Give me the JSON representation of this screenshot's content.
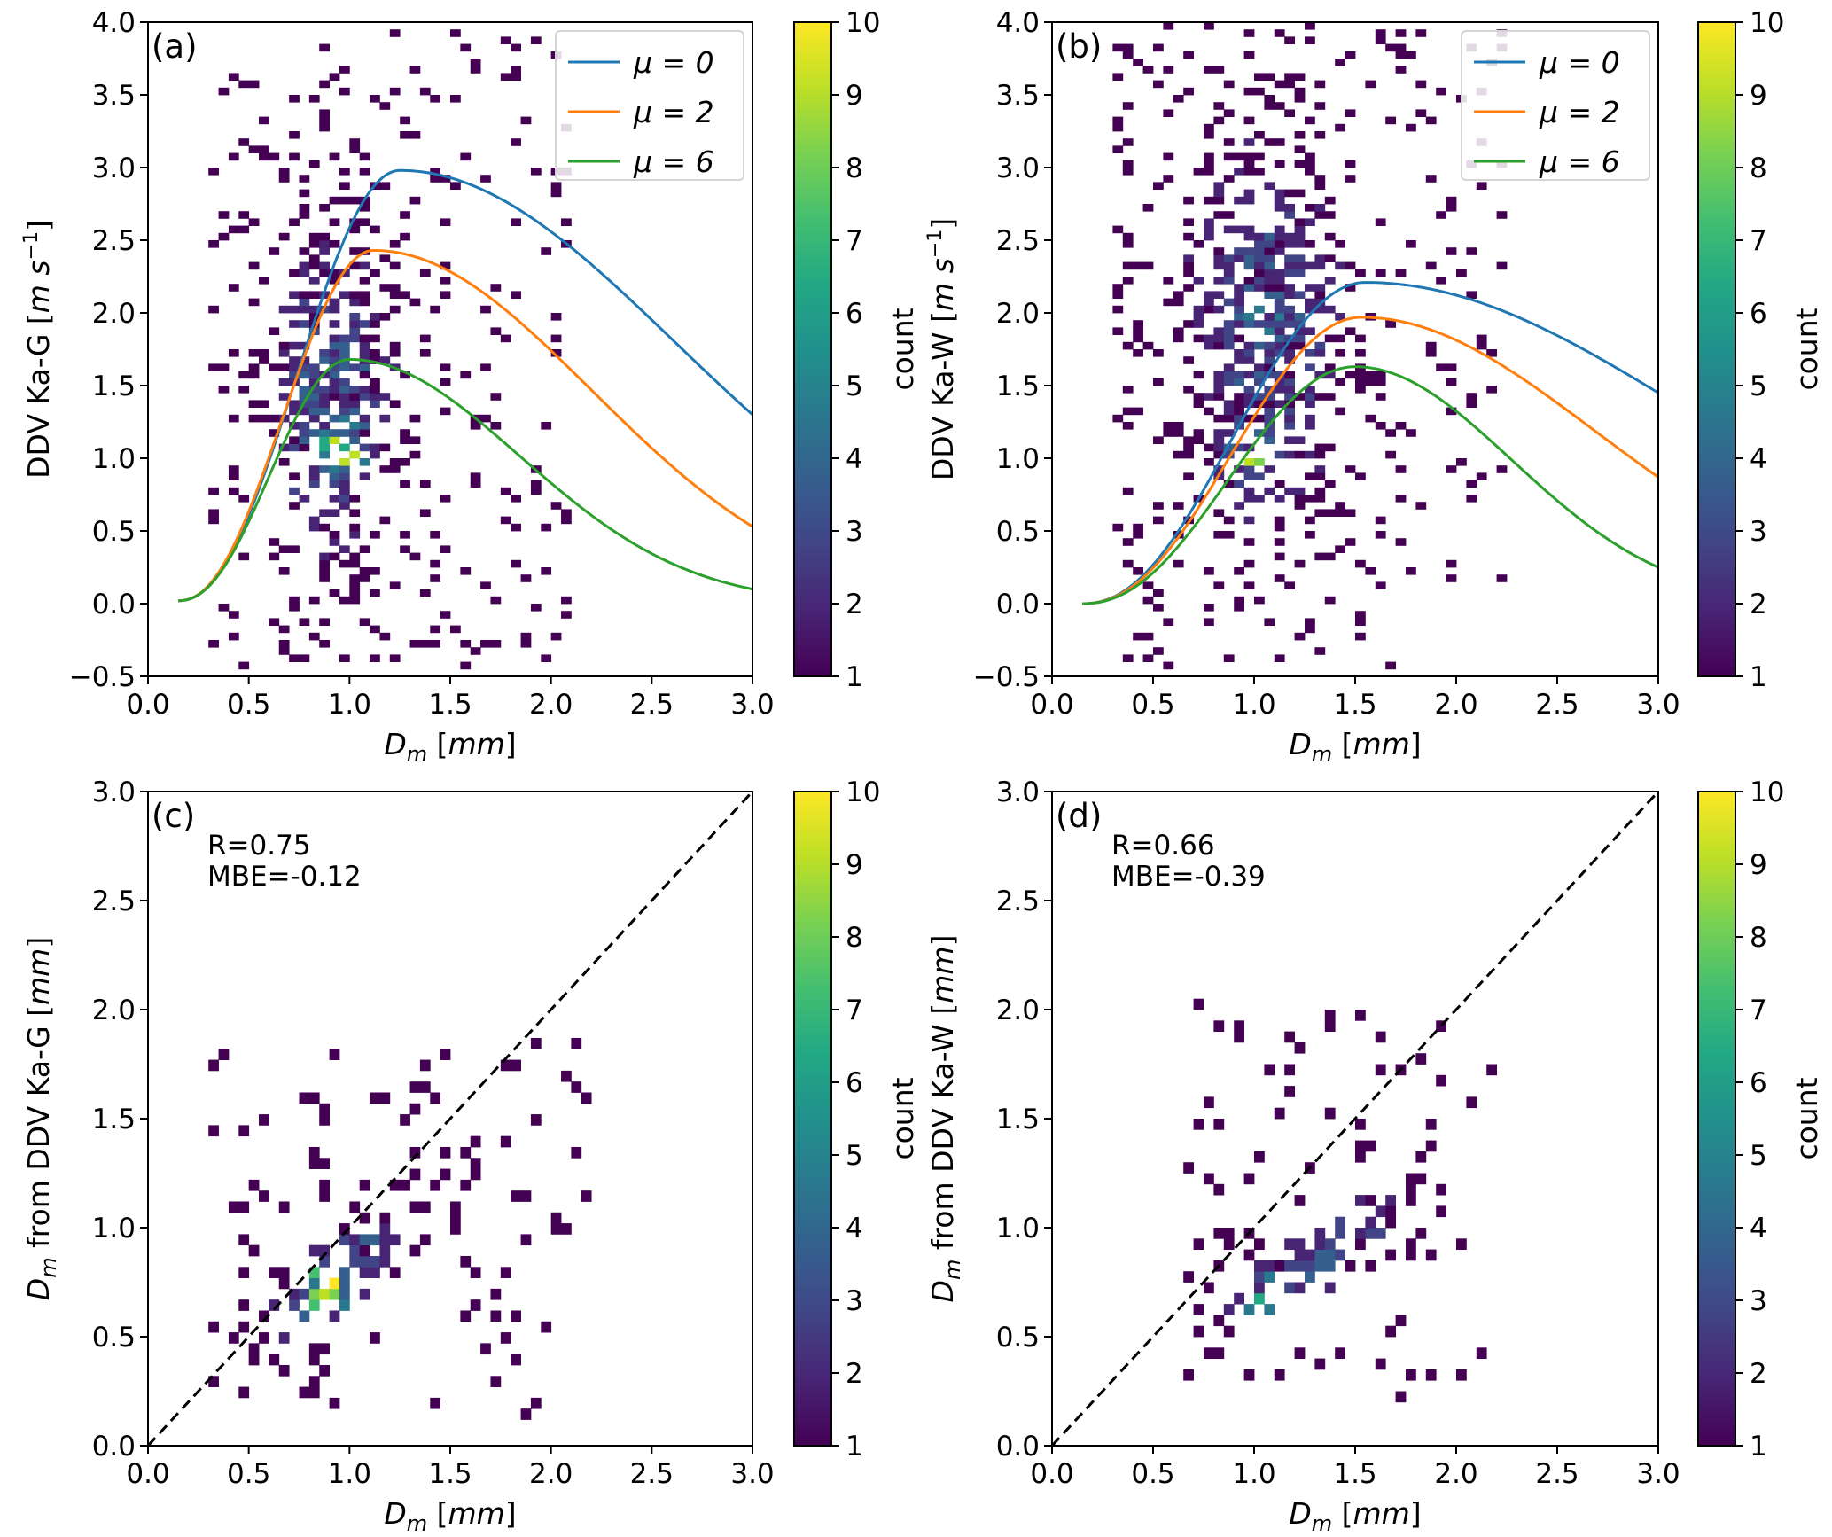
{
  "chart_data": [
    {
      "id": "a",
      "type": "heatmap",
      "panel_label": "(a)",
      "xlabel": "D_m [mm]",
      "xlabel_parts": {
        "main": "D",
        "sub": "m",
        "unit": "[mm]"
      },
      "ylabel": "DDV Ka-G [m s^-1]",
      "ylabel_parts": {
        "text": "DDV Ka-G [",
        "unit": "m s",
        "sup": "−1",
        "close": "]"
      },
      "xlim": [
        0.0,
        3.0
      ],
      "ylim": [
        -0.5,
        4.0
      ],
      "xticks": [
        "0.0",
        "0.5",
        "1.0",
        "1.5",
        "2.0",
        "2.5",
        "3.0"
      ],
      "yticks": [
        "−0.5",
        "0.0",
        "0.5",
        "1.0",
        "1.5",
        "2.0",
        "2.5",
        "3.0",
        "3.5",
        "4.0"
      ],
      "colorbar": {
        "label": "count",
        "min": 1,
        "max": 10,
        "ticks": [
          "1",
          "2",
          "3",
          "4",
          "5",
          "6",
          "7",
          "8",
          "9",
          "10"
        ]
      },
      "legend": {
        "placement": "top-right",
        "entries": [
          "μ = 0",
          "μ = 2",
          "μ = 6"
        ]
      },
      "curve_colors": [
        "#1f77b4",
        "#ff7f0e",
        "#2ca02c"
      ],
      "curve_params": {
        "x_start": 0.15,
        "x_end": 3.0,
        "peaks_x": [
          1.25,
          1.12,
          1.0
        ],
        "peaks_y": [
          2.98,
          2.43,
          1.68
        ],
        "end_y": [
          1.3,
          0.53,
          0.1
        ],
        "start_y": 0.02
      },
      "histogram": {
        "x_center": 0.92,
        "x_spread": 0.27,
        "y_center": 1.4,
        "y_spread": 1.05,
        "x_min": 0.3,
        "x_max": 2.1,
        "y_min": -0.45,
        "y_max": 3.9,
        "hot_x": 0.95,
        "hot_y": 1.05,
        "seed": 11
      }
    },
    {
      "id": "b",
      "type": "heatmap",
      "panel_label": "(b)",
      "xlabel": "D_m [mm]",
      "xlabel_parts": {
        "main": "D",
        "sub": "m",
        "unit": "[mm]"
      },
      "ylabel": "DDV Ka-W [m s^-1]",
      "ylabel_parts": {
        "text": "DDV Ka-W [",
        "unit": "m s",
        "sup": "−1",
        "close": "]"
      },
      "xlim": [
        0.0,
        3.0
      ],
      "ylim": [
        -0.5,
        4.0
      ],
      "xticks": [
        "0.0",
        "0.5",
        "1.0",
        "1.5",
        "2.0",
        "2.5",
        "3.0"
      ],
      "yticks": [
        "−0.5",
        "0.0",
        "0.5",
        "1.0",
        "1.5",
        "2.0",
        "2.5",
        "3.0",
        "3.5",
        "4.0"
      ],
      "colorbar": {
        "label": "count",
        "min": 1,
        "max": 10,
        "ticks": [
          "1",
          "2",
          "3",
          "4",
          "5",
          "6",
          "7",
          "8",
          "9",
          "10"
        ]
      },
      "legend": {
        "placement": "top-right",
        "entries": [
          "μ = 0",
          "μ = 2",
          "μ = 6"
        ]
      },
      "curve_colors": [
        "#1f77b4",
        "#ff7f0e",
        "#2ca02c"
      ],
      "curve_params": {
        "x_start": 0.15,
        "x_end": 3.0,
        "peaks_x": [
          1.55,
          1.53,
          1.5
        ],
        "peaks_y": [
          2.21,
          1.97,
          1.63
        ],
        "end_y": [
          1.45,
          0.87,
          0.25
        ],
        "start_y": 0.0
      },
      "histogram": {
        "x_center": 1.05,
        "x_spread": 0.35,
        "y_center": 1.85,
        "y_spread": 1.15,
        "x_min": 0.3,
        "x_max": 2.25,
        "y_min": -0.45,
        "y_max": 3.95,
        "hot_x": 1.0,
        "hot_y": 1.0,
        "seed": 23
      }
    },
    {
      "id": "c",
      "type": "heatmap",
      "panel_label": "(c)",
      "xlabel": "D_m [mm]",
      "xlabel_parts": {
        "main": "D",
        "sub": "m",
        "unit": "[mm]"
      },
      "ylabel": "D_m from DDV Ka-G [mm]",
      "ylabel_parts": {
        "main": "D",
        "sub": "m",
        "text": " from DDV Ka-G ",
        "unit": "[mm]"
      },
      "xlim": [
        0.0,
        3.0
      ],
      "ylim": [
        0.0,
        3.0
      ],
      "xticks": [
        "0.0",
        "0.5",
        "1.0",
        "1.5",
        "2.0",
        "2.5",
        "3.0"
      ],
      "yticks": [
        "0.0",
        "0.5",
        "1.0",
        "1.5",
        "2.0",
        "2.5",
        "3.0"
      ],
      "colorbar": {
        "label": "count",
        "min": 1,
        "max": 10,
        "ticks": [
          "1",
          "2",
          "3",
          "4",
          "5",
          "6",
          "7",
          "8",
          "9",
          "10"
        ]
      },
      "annotations": [
        "R=0.75",
        "MBE=-0.12"
      ],
      "identity_line": true,
      "histogram": {
        "x_center": 0.95,
        "x_spread": 0.38,
        "slope": 0.7,
        "intercept": 0.12,
        "y_spread": 0.17,
        "x_min": 0.3,
        "x_max": 2.2,
        "y_min": 0.12,
        "y_max": 1.85,
        "hot_x": 0.9,
        "hot_y": 0.75,
        "seed": 37
      }
    },
    {
      "id": "d",
      "type": "heatmap",
      "panel_label": "(d)",
      "xlabel": "D_m [mm]",
      "xlabel_parts": {
        "main": "D",
        "sub": "m",
        "unit": "[mm]"
      },
      "ylabel": "D_m from DDV Ka-W [mm]",
      "ylabel_parts": {
        "main": "D",
        "sub": "m",
        "text": " from DDV Ka-W ",
        "unit": "[mm]"
      },
      "xlim": [
        0.0,
        3.0
      ],
      "ylim": [
        0.0,
        3.0
      ],
      "xticks": [
        "0.0",
        "0.5",
        "1.0",
        "1.5",
        "2.0",
        "2.5",
        "3.0"
      ],
      "yticks": [
        "0.0",
        "0.5",
        "1.0",
        "1.5",
        "2.0",
        "2.5",
        "3.0"
      ],
      "colorbar": {
        "label": "count",
        "min": 1,
        "max": 10,
        "ticks": [
          "1",
          "2",
          "3",
          "4",
          "5",
          "6",
          "7",
          "8",
          "9",
          "10"
        ]
      },
      "annotations": [
        "R=0.66",
        "MBE=-0.39"
      ],
      "identity_line": true,
      "histogram": {
        "x_center": 1.35,
        "x_spread": 0.38,
        "slope": 0.5,
        "intercept": 0.2,
        "y_spread": 0.16,
        "x_min": 0.6,
        "x_max": 2.2,
        "y_min": 0.2,
        "y_max": 2.05,
        "hot_x": 1.05,
        "hot_y": 0.65,
        "seed": 51
      }
    }
  ]
}
